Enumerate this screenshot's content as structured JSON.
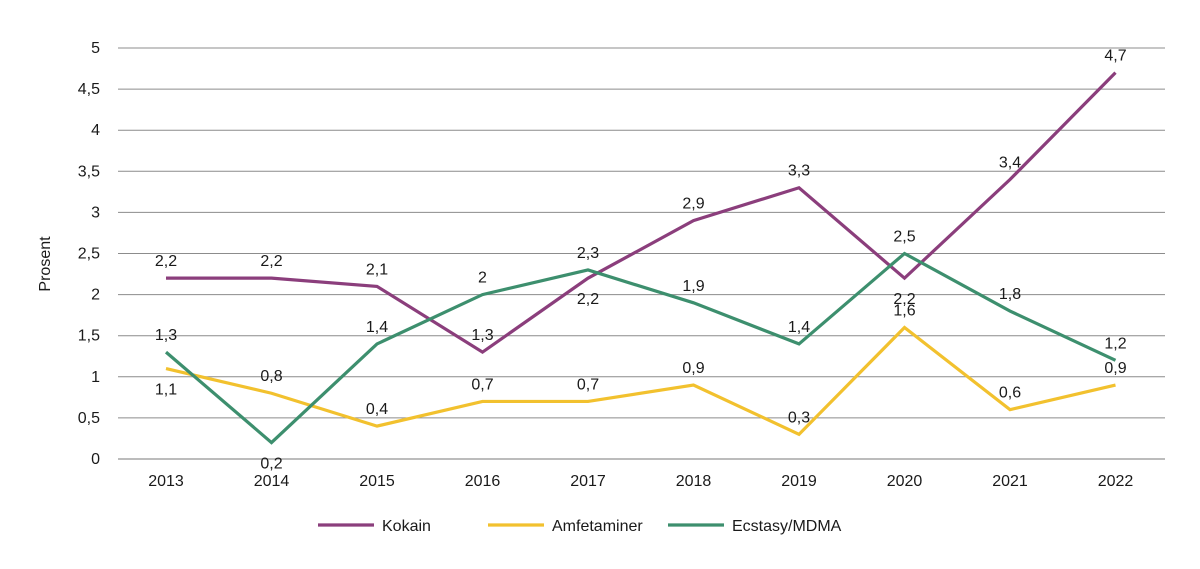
{
  "chart_data": {
    "type": "line",
    "title": "",
    "xlabel": "",
    "ylabel": "Prosent",
    "ylim": [
      0,
      5
    ],
    "yticks": [
      0,
      0.5,
      1,
      1.5,
      2,
      2.5,
      3,
      3.5,
      4,
      4.5,
      5
    ],
    "ytick_labels": [
      "0",
      "0,5",
      "1",
      "1,5",
      "2",
      "2,5",
      "3",
      "3,5",
      "4",
      "4,5",
      "5"
    ],
    "grid": true,
    "legend_position": "bottom-center",
    "categories": [
      "2013",
      "2014",
      "2015",
      "2016",
      "2017",
      "2018",
      "2019",
      "2020",
      "2021",
      "2022"
    ],
    "series": [
      {
        "name": "Kokain",
        "color": "#8b3e7c",
        "values": [
          2.2,
          2.2,
          2.1,
          1.3,
          2.2,
          2.9,
          3.3,
          2.2,
          3.4,
          4.7
        ],
        "labels": [
          "2,2",
          "2,2",
          "2,1",
          "1,3",
          "2,2",
          "2,9",
          "3,3",
          "2,2",
          "3,4",
          "4,7"
        ]
      },
      {
        "name": "Amfetaminer",
        "color": "#f2c12e",
        "values": [
          1.1,
          0.8,
          0.4,
          0.7,
          0.7,
          0.9,
          0.3,
          1.6,
          0.6,
          0.9
        ],
        "labels": [
          "1,1",
          "0,8",
          "0,4",
          "0,7",
          "0,7",
          "0,9",
          "0,3",
          "1,6",
          "0,6",
          "0,9"
        ]
      },
      {
        "name": "Ecstasy/MDMA",
        "color": "#3d8f6e",
        "values": [
          1.3,
          0.2,
          1.4,
          2.0,
          2.3,
          1.9,
          1.4,
          2.5,
          1.8,
          1.2
        ],
        "labels": [
          "1,3",
          "0,2",
          "1,4",
          "2",
          "2,3",
          "1,9",
          "1,4",
          "2,5",
          "1,8",
          "1,2"
        ]
      }
    ]
  }
}
